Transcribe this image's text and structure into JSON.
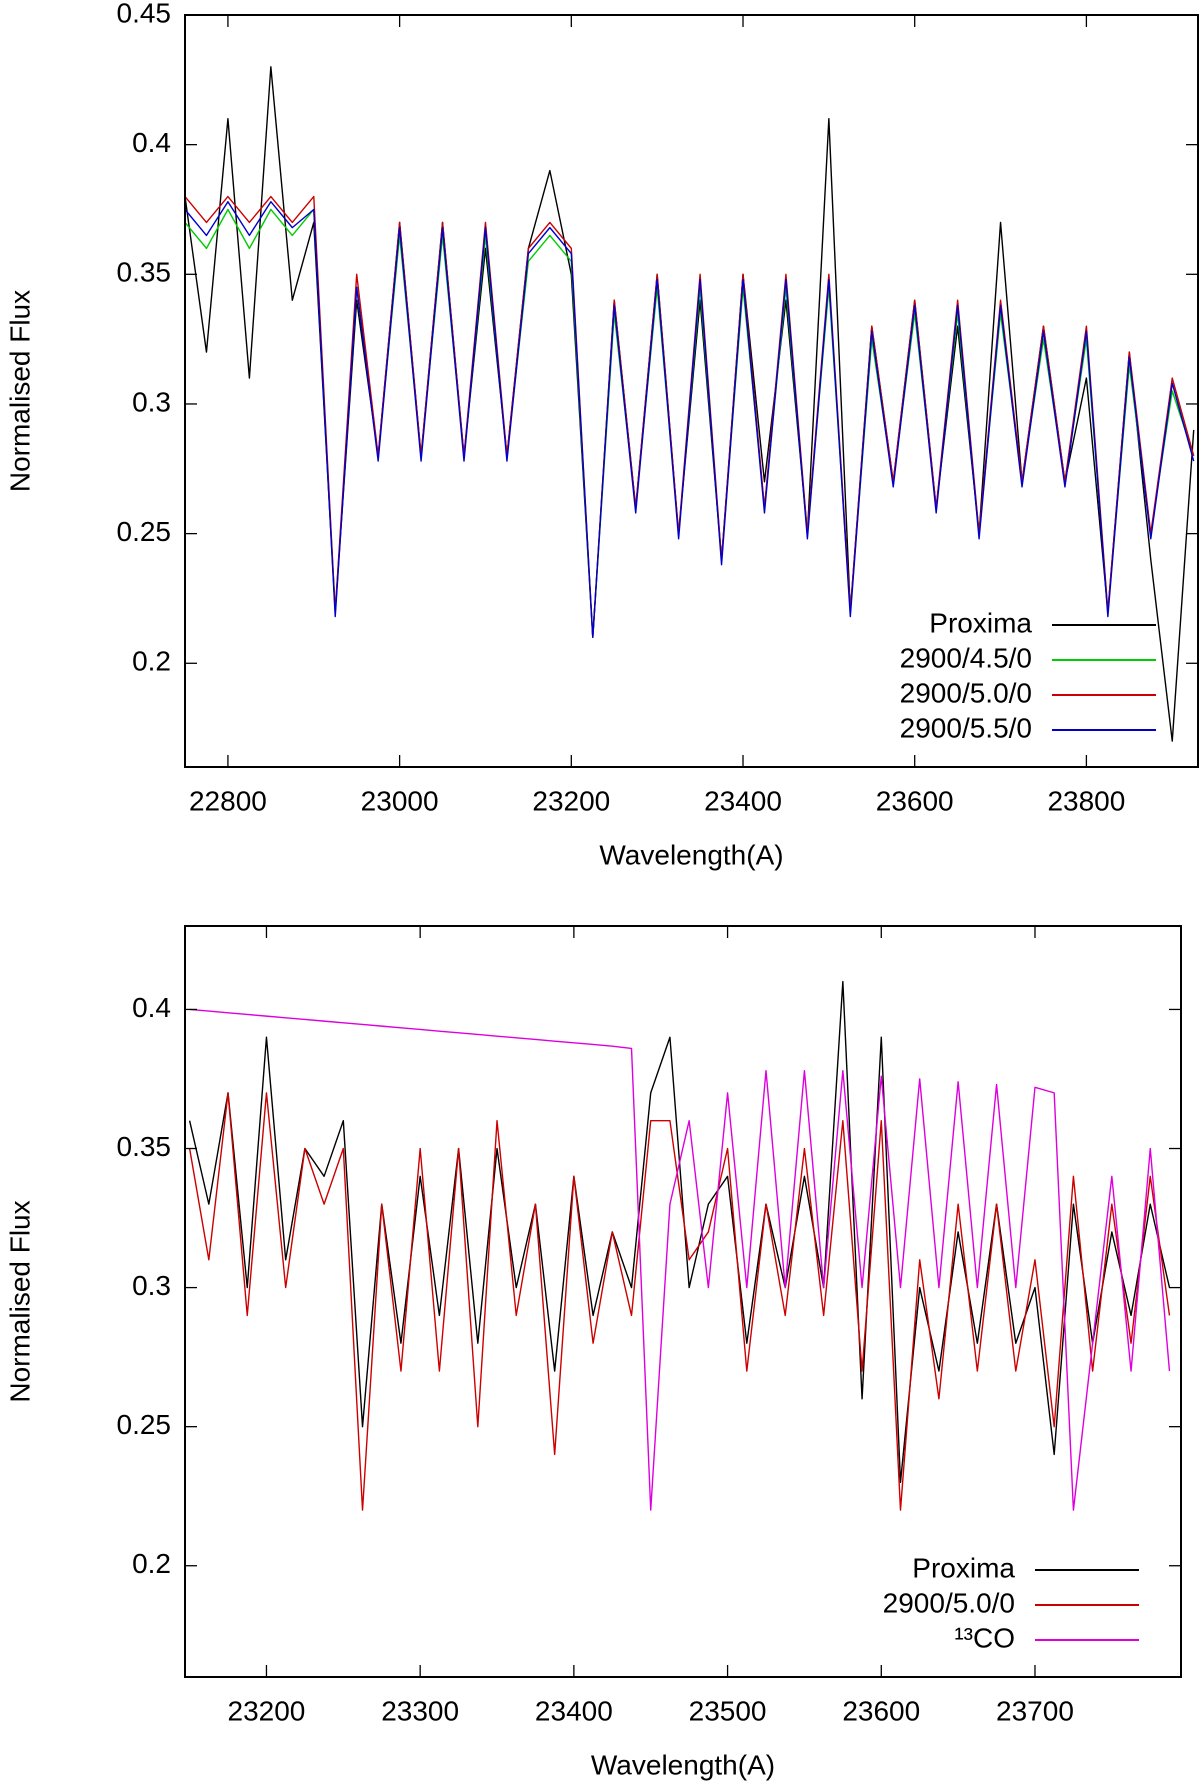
{
  "chart_data": [
    {
      "type": "line",
      "xlabel": "Wavelength(A)",
      "ylabel": "Normalised Flux",
      "xlim": [
        22750,
        23930
      ],
      "ylim": [
        0.16,
        0.45
      ],
      "xticks": [
        22800,
        23000,
        23200,
        23400,
        23600,
        23800
      ],
      "yticks": [
        0.2,
        0.25,
        0.3,
        0.35,
        0.4,
        0.45
      ],
      "legend": "lower right",
      "x": [
        22750,
        22775,
        22800,
        22825,
        22850,
        22875,
        22900,
        22925,
        22950,
        22975,
        23000,
        23025,
        23050,
        23075,
        23100,
        23125,
        23150,
        23175,
        23200,
        23225,
        23250,
        23275,
        23300,
        23325,
        23350,
        23375,
        23400,
        23425,
        23450,
        23475,
        23500,
        23525,
        23550,
        23575,
        23600,
        23625,
        23650,
        23675,
        23700,
        23725,
        23750,
        23775,
        23800,
        23825,
        23850,
        23875,
        23900,
        23925
      ],
      "series": [
        {
          "name": "Proxima",
          "color": "#000000",
          "values": [
            0.38,
            0.32,
            0.41,
            0.31,
            0.43,
            0.34,
            0.37,
            0.22,
            0.34,
            0.28,
            0.37,
            0.28,
            0.37,
            0.28,
            0.36,
            0.28,
            0.36,
            0.39,
            0.35,
            0.21,
            0.34,
            0.26,
            0.35,
            0.25,
            0.34,
            0.24,
            0.35,
            0.27,
            0.34,
            0.25,
            0.41,
            0.22,
            0.33,
            0.27,
            0.34,
            0.26,
            0.33,
            0.25,
            0.37,
            0.27,
            0.33,
            0.27,
            0.31,
            0.22,
            0.32,
            0.24,
            0.17,
            0.29
          ]
        },
        {
          "name": "2900/4.5/0",
          "color": "#00cc00",
          "values": [
            0.37,
            0.36,
            0.375,
            0.36,
            0.375,
            0.365,
            0.375,
            0.22,
            0.345,
            0.28,
            0.365,
            0.28,
            0.365,
            0.28,
            0.365,
            0.28,
            0.355,
            0.365,
            0.355,
            0.21,
            0.335,
            0.26,
            0.345,
            0.25,
            0.345,
            0.24,
            0.345,
            0.26,
            0.345,
            0.25,
            0.345,
            0.22,
            0.325,
            0.27,
            0.335,
            0.26,
            0.335,
            0.25,
            0.335,
            0.27,
            0.325,
            0.27,
            0.325,
            0.22,
            0.315,
            0.25,
            0.305,
            0.28
          ]
        },
        {
          "name": "2900/5.0/0",
          "color": "#cc0000",
          "values": [
            0.38,
            0.37,
            0.38,
            0.37,
            0.38,
            0.37,
            0.38,
            0.22,
            0.35,
            0.28,
            0.37,
            0.28,
            0.37,
            0.28,
            0.37,
            0.28,
            0.36,
            0.37,
            0.36,
            0.21,
            0.34,
            0.26,
            0.35,
            0.25,
            0.35,
            0.24,
            0.35,
            0.26,
            0.35,
            0.25,
            0.35,
            0.22,
            0.33,
            0.27,
            0.34,
            0.26,
            0.34,
            0.25,
            0.34,
            0.27,
            0.33,
            0.27,
            0.33,
            0.22,
            0.32,
            0.25,
            0.31,
            0.28
          ]
        },
        {
          "name": "2900/5.5/0",
          "color": "#0000cc",
          "values": [
            0.375,
            0.365,
            0.378,
            0.365,
            0.378,
            0.368,
            0.375,
            0.218,
            0.345,
            0.278,
            0.368,
            0.278,
            0.368,
            0.278,
            0.368,
            0.278,
            0.358,
            0.368,
            0.358,
            0.21,
            0.338,
            0.258,
            0.348,
            0.248,
            0.348,
            0.238,
            0.348,
            0.258,
            0.348,
            0.248,
            0.348,
            0.218,
            0.328,
            0.268,
            0.338,
            0.258,
            0.338,
            0.248,
            0.338,
            0.268,
            0.328,
            0.268,
            0.328,
            0.218,
            0.318,
            0.248,
            0.308,
            0.278
          ]
        }
      ]
    },
    {
      "type": "line",
      "xlabel": "Wavelength(A)",
      "ylabel": "Normalised Flux",
      "xlim": [
        23147,
        23795
      ],
      "ylim": [
        0.16,
        0.43
      ],
      "xticks": [
        23200,
        23300,
        23400,
        23500,
        23600,
        23700
      ],
      "yticks": [
        0.2,
        0.25,
        0.3,
        0.35,
        0.4
      ],
      "legend": "lower right",
      "x": [
        23150,
        23162.5,
        23175,
        23187.5,
        23200,
        23212.5,
        23225,
        23237.5,
        23250,
        23262.5,
        23275,
        23287.5,
        23300,
        23312.5,
        23325,
        23337.5,
        23350,
        23362.5,
        23375,
        23387.5,
        23400,
        23412.5,
        23425,
        23437.5,
        23450,
        23462.5,
        23475,
        23487.5,
        23500,
        23512.5,
        23525,
        23537.5,
        23550,
        23562.5,
        23575,
        23587.5,
        23600,
        23612.5,
        23625,
        23637.5,
        23650,
        23662.5,
        23675,
        23687.5,
        23700,
        23712.5,
        23725,
        23737.5,
        23750,
        23762.5,
        23775,
        23787.5
      ],
      "series": [
        {
          "name": "Proxima",
          "color": "#000000",
          "values": [
            0.36,
            0.33,
            0.37,
            0.3,
            0.39,
            0.31,
            0.35,
            0.34,
            0.36,
            0.25,
            0.33,
            0.28,
            0.34,
            0.29,
            0.35,
            0.28,
            0.35,
            0.3,
            0.33,
            0.27,
            0.34,
            0.29,
            0.32,
            0.3,
            0.37,
            0.39,
            0.3,
            0.33,
            0.34,
            0.28,
            0.33,
            0.3,
            0.34,
            0.3,
            0.41,
            0.26,
            0.39,
            0.23,
            0.3,
            0.27,
            0.32,
            0.28,
            0.33,
            0.28,
            0.3,
            0.24,
            0.33,
            0.28,
            0.32,
            0.29,
            0.33,
            0.3
          ]
        },
        {
          "name": "2900/5.0/0",
          "color": "#cc0000",
          "values": [
            0.35,
            0.31,
            0.37,
            0.29,
            0.37,
            0.3,
            0.35,
            0.33,
            0.35,
            0.22,
            0.33,
            0.27,
            0.35,
            0.27,
            0.35,
            0.25,
            0.36,
            0.29,
            0.33,
            0.24,
            0.34,
            0.28,
            0.32,
            0.29,
            0.36,
            0.36,
            0.31,
            0.32,
            0.35,
            0.27,
            0.33,
            0.29,
            0.35,
            0.29,
            0.36,
            0.27,
            0.36,
            0.22,
            0.31,
            0.26,
            0.33,
            0.27,
            0.33,
            0.27,
            0.31,
            0.25,
            0.34,
            0.27,
            0.33,
            0.28,
            0.34,
            0.29
          ]
        },
        {
          "name": "¹³CO",
          "color": "#dd00dd",
          "values": [
            0.4,
            0.3994,
            0.3988,
            0.3982,
            0.3976,
            0.397,
            0.3964,
            0.3958,
            0.3952,
            0.3946,
            0.394,
            0.3934,
            0.3928,
            0.3922,
            0.3916,
            0.391,
            0.3904,
            0.3898,
            0.3892,
            0.3886,
            0.388,
            0.3874,
            0.3868,
            0.386,
            0.22,
            0.33,
            0.36,
            0.3,
            0.37,
            0.3,
            0.378,
            0.3,
            0.378,
            0.3,
            0.378,
            0.3,
            0.376,
            0.3,
            0.375,
            0.3,
            0.374,
            0.3,
            0.373,
            0.3,
            0.372,
            0.37,
            0.22,
            0.28,
            0.34,
            0.27,
            0.35,
            0.27
          ]
        }
      ]
    }
  ]
}
